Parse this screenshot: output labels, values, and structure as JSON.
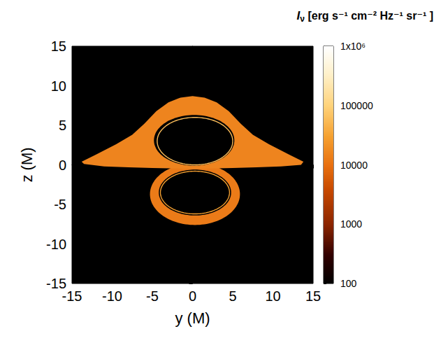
{
  "chart_data": {
    "type": "intensity_map",
    "xlabel": "y (M)",
    "ylabel": "z (M)",
    "xlim": [
      -15,
      15
    ],
    "ylim": [
      -15,
      15
    ],
    "xticks": [
      -15,
      -10,
      -5,
      0,
      5,
      10,
      15
    ],
    "yticks": [
      -15,
      -10,
      -5,
      0,
      5,
      10,
      15
    ],
    "grid": false,
    "colorbar": {
      "title": "Iν [erg s⁻¹ cm⁻² Hz⁻¹ sr⁻¹ ]",
      "range": [
        100,
        1000000
      ],
      "ticks": [
        100,
        1000,
        10000,
        100000,
        {
          "value": 1000000,
          "label": "1x10⁶"
        }
      ],
      "log": true
    },
    "shapes": [
      {
        "shape": "ellipse",
        "center": [
          0.3,
          -3.7
        ],
        "radii": [
          5.6,
          3.9
        ],
        "intensity": 13000
      },
      {
        "shape": "ellipse",
        "center": [
          0.3,
          -3.5
        ],
        "radii": [
          4.5,
          2.9
        ],
        "intensity": 100
      },
      {
        "shape": "ring",
        "center": [
          0.3,
          -3.5
        ],
        "radii": [
          4.3,
          2.7
        ],
        "intensity": 30000
      },
      {
        "shape": "polygon",
        "points": [
          [
            -13.8,
            0.4
          ],
          [
            -12,
            1.3
          ],
          [
            -9.5,
            2.6
          ],
          [
            -7.5,
            3.8
          ],
          [
            -6,
            5.2
          ],
          [
            -4.5,
            6.8
          ],
          [
            -3,
            7.9
          ],
          [
            -1.5,
            8.5
          ],
          [
            0,
            8.7
          ],
          [
            1.5,
            8.5
          ],
          [
            3,
            7.9
          ],
          [
            4.5,
            6.8
          ],
          [
            6,
            5.2
          ],
          [
            7.5,
            3.8
          ],
          [
            9.5,
            2.6
          ],
          [
            12,
            1.3
          ],
          [
            13.8,
            0.4
          ],
          [
            13.5,
            0.0
          ],
          [
            11,
            -0.2
          ],
          [
            8,
            -0.3
          ],
          [
            5,
            -0.4
          ],
          [
            0,
            -0.5
          ],
          [
            -5,
            -0.4
          ],
          [
            -8,
            -0.3
          ],
          [
            -11,
            -0.2
          ],
          [
            -13.5,
            0.1
          ]
        ],
        "intensity": 16000
      },
      {
        "shape": "ellipse",
        "center": [
          0.2,
          3.1
        ],
        "radii": [
          5.0,
          3.2
        ],
        "intensity": 100
      },
      {
        "shape": "ring",
        "center": [
          0.3,
          3.0
        ],
        "radii": [
          4.7,
          3.0
        ],
        "intensity": 60000
      }
    ]
  }
}
